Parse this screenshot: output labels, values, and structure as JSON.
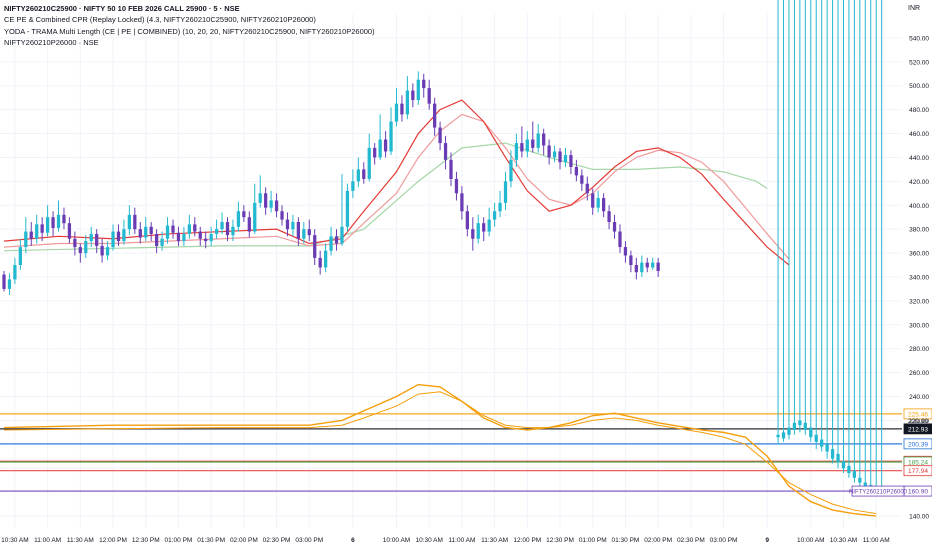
{
  "legend": {
    "symbol": "NIFTY260210C25900 · NIFTY 50 10 FEB 2026 CALL 25900 · 5 · NSE",
    "indicator1": "CE PE & Combined CPR (Replay Locked) (4.3, NIFTY260210C25900, NIFTY260210P26000)",
    "indicator2": "YODA - TRAMA Multi Length (CE | PE | COMBINED) (10, 20, 20, NIFTY260210C25900, NIFTY260210P26000)",
    "indicator3": "NIFTY260210P26000 · NSE"
  },
  "currency": "INR",
  "colors": {
    "up": "#22b8cf",
    "down": "#6a3cb4",
    "trama_fast": "#e53935",
    "trama_slow": "#ef9a9a",
    "trama_long": "#a5d6a7",
    "combined": "#f59e0b",
    "cpr_blue": "#1e6fd9",
    "cpr_black": "#131722",
    "grid": "#f0f3fa"
  },
  "chart_data": {
    "type": "candlestick",
    "y_axis": {
      "ticks": [
        140,
        160,
        180,
        200,
        220,
        240,
        260,
        280,
        300,
        320,
        340,
        360,
        380,
        400,
        420,
        440,
        460,
        480,
        500,
        520,
        540
      ],
      "range": [
        130,
        560
      ]
    },
    "x_axis": {
      "ticks": [
        {
          "label": "10:30 AM",
          "bar": 2
        },
        {
          "label": "11:00 AM",
          "bar": 8
        },
        {
          "label": "11:30 AM",
          "bar": 14
        },
        {
          "label": "12:00 PM",
          "bar": 20
        },
        {
          "label": "12:30 PM",
          "bar": 26
        },
        {
          "label": "01:00 PM",
          "bar": 32
        },
        {
          "label": "01:30 PM",
          "bar": 38
        },
        {
          "label": "02:00 PM",
          "bar": 44
        },
        {
          "label": "02:30 PM",
          "bar": 50
        },
        {
          "label": "03:00 PM",
          "bar": 56
        },
        {
          "label": "6",
          "bar": 64,
          "day": true
        },
        {
          "label": "10:00 AM",
          "bar": 72
        },
        {
          "label": "10:30 AM",
          "bar": 78
        },
        {
          "label": "11:00 AM",
          "bar": 84
        },
        {
          "label": "11:30 AM",
          "bar": 90
        },
        {
          "label": "12:00 PM",
          "bar": 96
        },
        {
          "label": "12:30 PM",
          "bar": 102
        },
        {
          "label": "01:00 PM",
          "bar": 108
        },
        {
          "label": "01:30 PM",
          "bar": 114
        },
        {
          "label": "02:00 PM",
          "bar": 120
        },
        {
          "label": "02:30 PM",
          "bar": 126
        },
        {
          "label": "03:00 PM",
          "bar": 132
        },
        {
          "label": "9",
          "bar": 140,
          "day": true
        },
        {
          "label": "10:00 AM",
          "bar": 148
        },
        {
          "label": "10:30 AM",
          "bar": 154
        },
        {
          "label": "11:00 AM",
          "bar": 160
        }
      ],
      "total_bars": 164
    },
    "candles": [
      [
        342,
        330,
        345,
        328
      ],
      [
        330,
        338,
        343,
        325
      ],
      [
        338,
        350,
        356,
        334
      ],
      [
        350,
        365,
        372,
        346
      ],
      [
        365,
        378,
        390,
        360
      ],
      [
        378,
        372,
        386,
        366
      ],
      [
        372,
        384,
        392,
        368
      ],
      [
        384,
        377,
        390,
        370
      ],
      [
        377,
        390,
        400,
        374
      ],
      [
        390,
        381,
        395,
        374
      ],
      [
        381,
        392,
        404,
        378
      ],
      [
        392,
        385,
        398,
        380
      ],
      [
        385,
        372,
        390,
        368
      ],
      [
        372,
        365,
        378,
        358
      ],
      [
        365,
        360,
        368,
        352
      ],
      [
        360,
        370,
        375,
        356
      ],
      [
        370,
        376,
        382,
        365
      ],
      [
        376,
        366,
        380,
        360
      ],
      [
        366,
        358,
        372,
        352
      ],
      [
        358,
        365,
        370,
        354
      ],
      [
        365,
        378,
        384,
        362
      ],
      [
        378,
        370,
        384,
        366
      ],
      [
        370,
        380,
        388,
        367
      ],
      [
        380,
        392,
        400,
        375
      ],
      [
        392,
        380,
        398,
        376
      ],
      [
        380,
        373,
        386,
        368
      ],
      [
        373,
        382,
        390,
        370
      ],
      [
        382,
        376,
        386,
        370
      ],
      [
        376,
        366,
        380,
        360
      ],
      [
        366,
        372,
        378,
        362
      ],
      [
        372,
        383,
        390,
        368
      ],
      [
        383,
        377,
        388,
        372
      ],
      [
        377,
        370,
        382,
        366
      ],
      [
        370,
        376,
        382,
        366
      ],
      [
        376,
        384,
        392,
        372
      ],
      [
        384,
        378,
        390,
        374
      ],
      [
        378,
        372,
        382,
        366
      ],
      [
        372,
        370,
        378,
        364
      ],
      [
        370,
        376,
        382,
        366
      ],
      [
        376,
        380,
        388,
        372
      ],
      [
        380,
        386,
        394,
        376
      ],
      [
        386,
        375,
        390,
        370
      ],
      [
        375,
        382,
        388,
        370
      ],
      [
        382,
        395,
        403,
        378
      ],
      [
        395,
        390,
        400,
        386
      ],
      [
        390,
        378,
        395,
        373
      ],
      [
        378,
        402,
        418,
        376
      ],
      [
        402,
        410,
        425,
        398
      ],
      [
        410,
        398,
        415,
        392
      ],
      [
        398,
        404,
        412,
        394
      ],
      [
        404,
        395,
        410,
        390
      ],
      [
        395,
        388,
        400,
        383
      ],
      [
        388,
        380,
        394,
        374
      ],
      [
        380,
        386,
        392,
        374
      ],
      [
        386,
        372,
        390,
        366
      ],
      [
        372,
        380,
        386,
        368
      ],
      [
        380,
        375,
        388,
        370
      ],
      [
        375,
        356,
        380,
        350
      ],
      [
        356,
        348,
        362,
        342
      ],
      [
        348,
        362,
        368,
        344
      ],
      [
        362,
        374,
        382,
        358
      ],
      [
        374,
        368,
        380,
        362
      ],
      [
        368,
        382,
        426,
        366
      ],
      [
        382,
        412,
        418,
        378
      ],
      [
        412,
        420,
        430,
        406
      ],
      [
        420,
        430,
        440,
        415
      ],
      [
        430,
        422,
        436,
        418
      ],
      [
        422,
        448,
        460,
        420
      ],
      [
        448,
        440,
        452,
        434
      ],
      [
        440,
        455,
        476,
        438
      ],
      [
        455,
        445,
        462,
        440
      ],
      [
        445,
        470,
        482,
        442
      ],
      [
        470,
        485,
        498,
        466
      ],
      [
        485,
        476,
        492,
        470
      ],
      [
        476,
        496,
        508,
        472
      ],
      [
        496,
        488,
        502,
        482
      ],
      [
        488,
        505,
        512,
        484
      ],
      [
        505,
        498,
        510,
        490
      ],
      [
        498,
        485,
        505,
        480
      ],
      [
        485,
        465,
        490,
        458
      ],
      [
        465,
        452,
        470,
        446
      ],
      [
        452,
        438,
        458,
        430
      ],
      [
        438,
        422,
        444,
        416
      ],
      [
        422,
        410,
        428,
        404
      ],
      [
        410,
        395,
        416,
        388
      ],
      [
        395,
        380,
        400,
        374
      ],
      [
        380,
        372,
        390,
        362
      ],
      [
        372,
        385,
        392,
        368
      ],
      [
        385,
        378,
        390,
        370
      ],
      [
        378,
        388,
        398,
        374
      ],
      [
        388,
        395,
        402,
        382
      ],
      [
        395,
        402,
        412,
        390
      ],
      [
        402,
        420,
        428,
        396
      ],
      [
        420,
        438,
        446,
        415
      ],
      [
        438,
        452,
        460,
        432
      ],
      [
        452,
        445,
        466,
        440
      ],
      [
        445,
        455,
        462,
        440
      ],
      [
        455,
        448,
        470,
        444
      ],
      [
        448,
        460,
        468,
        444
      ],
      [
        460,
        450,
        464,
        442
      ],
      [
        450,
        440,
        455,
        434
      ],
      [
        440,
        445,
        450,
        436
      ],
      [
        445,
        436,
        448,
        430
      ],
      [
        436,
        442,
        448,
        432
      ],
      [
        442,
        432,
        446,
        426
      ],
      [
        432,
        425,
        438,
        420
      ],
      [
        425,
        418,
        430,
        412
      ],
      [
        418,
        410,
        424,
        404
      ],
      [
        410,
        398,
        414,
        392
      ],
      [
        398,
        406,
        412,
        394
      ],
      [
        406,
        395,
        410,
        390
      ],
      [
        395,
        386,
        400,
        380
      ],
      [
        386,
        378,
        392,
        372
      ],
      [
        378,
        365,
        384,
        360
      ],
      [
        365,
        358,
        370,
        352
      ],
      [
        358,
        350,
        362,
        344
      ],
      [
        350,
        344,
        356,
        338
      ],
      [
        344,
        352,
        358,
        340
      ],
      [
        352,
        348,
        356,
        344
      ],
      [
        348,
        352,
        356,
        346
      ],
      [
        352,
        345,
        356,
        340
      ]
    ],
    "trama_fast": [
      [
        0,
        370
      ],
      [
        10,
        374
      ],
      [
        20,
        372
      ],
      [
        30,
        376
      ],
      [
        40,
        378
      ],
      [
        50,
        380
      ],
      [
        56,
        368
      ],
      [
        62,
        372
      ],
      [
        66,
        395
      ],
      [
        72,
        428
      ],
      [
        76,
        460
      ],
      [
        80,
        480
      ],
      [
        84,
        488
      ],
      [
        88,
        470
      ],
      [
        92,
        440
      ],
      [
        96,
        412
      ],
      [
        100,
        395
      ],
      [
        104,
        400
      ],
      [
        108,
        415
      ],
      [
        112,
        432
      ],
      [
        116,
        445
      ],
      [
        120,
        448
      ],
      [
        124,
        440
      ],
      [
        128,
        426
      ],
      [
        132,
        405
      ],
      [
        136,
        385
      ],
      [
        140,
        365
      ],
      [
        144,
        350
      ]
    ],
    "trama_slow": [
      [
        0,
        365
      ],
      [
        10,
        368
      ],
      [
        20,
        368
      ],
      [
        30,
        370
      ],
      [
        40,
        372
      ],
      [
        50,
        374
      ],
      [
        56,
        366
      ],
      [
        62,
        368
      ],
      [
        66,
        385
      ],
      [
        72,
        410
      ],
      [
        76,
        440
      ],
      [
        80,
        462
      ],
      [
        84,
        476
      ],
      [
        88,
        470
      ],
      [
        92,
        448
      ],
      [
        96,
        422
      ],
      [
        100,
        405
      ],
      [
        104,
        400
      ],
      [
        108,
        410
      ],
      [
        112,
        428
      ],
      [
        116,
        440
      ],
      [
        120,
        446
      ],
      [
        124,
        444
      ],
      [
        128,
        436
      ],
      [
        132,
        420
      ],
      [
        136,
        398
      ],
      [
        140,
        376
      ],
      [
        144,
        355
      ]
    ],
    "trama_long": [
      [
        0,
        362
      ],
      [
        20,
        364
      ],
      [
        40,
        366
      ],
      [
        56,
        366
      ],
      [
        66,
        380
      ],
      [
        76,
        420
      ],
      [
        84,
        448
      ],
      [
        92,
        452
      ],
      [
        100,
        440
      ],
      [
        108,
        430
      ],
      [
        116,
        430
      ],
      [
        124,
        432
      ],
      [
        132,
        428
      ],
      [
        138,
        420
      ],
      [
        140,
        414
      ]
    ],
    "put_series": {
      "name": "NIFTY260210P26000",
      "candles": [
        [
          142,
          206,
          208,
          200
        ],
        [
          143,
          205,
          210,
          202
        ],
        [
          144,
          208,
          214,
          204
        ],
        [
          145,
          212,
          218,
          208
        ],
        [
          146,
          216,
          220,
          210
        ],
        [
          147,
          212,
          218,
          208
        ],
        [
          148,
          206,
          214,
          202
        ],
        [
          149,
          202,
          208,
          196
        ],
        [
          150,
          198,
          204,
          194
        ],
        [
          151,
          194,
          200,
          188
        ],
        [
          152,
          188,
          196,
          184
        ],
        [
          153,
          185,
          192,
          180
        ],
        [
          154,
          180,
          186,
          176
        ],
        [
          155,
          176,
          182,
          172
        ],
        [
          156,
          172,
          178,
          168
        ],
        [
          157,
          168,
          172,
          164
        ],
        [
          158,
          164,
          168,
          160
        ],
        [
          159,
          162,
          166,
          158
        ],
        [
          160,
          161,
          164,
          158
        ],
        [
          161,
          160,
          163,
          158
        ]
      ]
    },
    "combined_line": [
      [
        0,
        214
      ],
      [
        20,
        216
      ],
      [
        40,
        216
      ],
      [
        56,
        216
      ],
      [
        62,
        220
      ],
      [
        66,
        228
      ],
      [
        72,
        240
      ],
      [
        76,
        250
      ],
      [
        80,
        248
      ],
      [
        84,
        236
      ],
      [
        88,
        222
      ],
      [
        92,
        214
      ],
      [
        96,
        212
      ],
      [
        100,
        214
      ],
      [
        104,
        218
      ],
      [
        108,
        224
      ],
      [
        112,
        226
      ],
      [
        116,
        222
      ],
      [
        120,
        218
      ],
      [
        124,
        215
      ],
      [
        128,
        212
      ],
      [
        132,
        210
      ],
      [
        136,
        206
      ],
      [
        140,
        190
      ],
      [
        144,
        165
      ],
      [
        148,
        152
      ],
      [
        152,
        145
      ],
      [
        156,
        142
      ],
      [
        160,
        140
      ]
    ],
    "combined_smooth": [
      [
        0,
        212
      ],
      [
        20,
        213
      ],
      [
        40,
        214
      ],
      [
        56,
        214
      ],
      [
        62,
        216
      ],
      [
        66,
        222
      ],
      [
        72,
        232
      ],
      [
        76,
        242
      ],
      [
        80,
        244
      ],
      [
        84,
        236
      ],
      [
        88,
        224
      ],
      [
        92,
        216
      ],
      [
        96,
        214
      ],
      [
        100,
        214
      ],
      [
        104,
        216
      ],
      [
        108,
        220
      ],
      [
        112,
        222
      ],
      [
        116,
        220
      ],
      [
        120,
        216
      ],
      [
        124,
        213
      ],
      [
        128,
        210
      ],
      [
        132,
        206
      ],
      [
        136,
        200
      ],
      [
        140,
        185
      ],
      [
        144,
        168
      ],
      [
        148,
        158
      ],
      [
        152,
        150
      ],
      [
        156,
        145
      ],
      [
        160,
        142
      ]
    ],
    "levels": [
      {
        "value": 225.46,
        "label": "225.46",
        "color": "#f59e0b"
      },
      {
        "value": 212.93,
        "label": "212.93",
        "color": "#131722"
      },
      {
        "value": 200.39,
        "label": "200.39",
        "color": "#1e6fd9"
      },
      {
        "value": 185.84,
        "label": "185.84",
        "color": "#e53935"
      },
      {
        "value": 185.24,
        "label": "185.24",
        "color": "#43a047"
      },
      {
        "value": 177.94,
        "label": "177.94",
        "color": "#e53935"
      },
      {
        "value": 160.9,
        "label": "160.90",
        "color": "#6a3cb4"
      }
    ],
    "axis_tags": [
      {
        "text": "220.00",
        "value": 220
      },
      {
        "text": "NIFTY260210P26000",
        "value": 160.9
      }
    ]
  }
}
